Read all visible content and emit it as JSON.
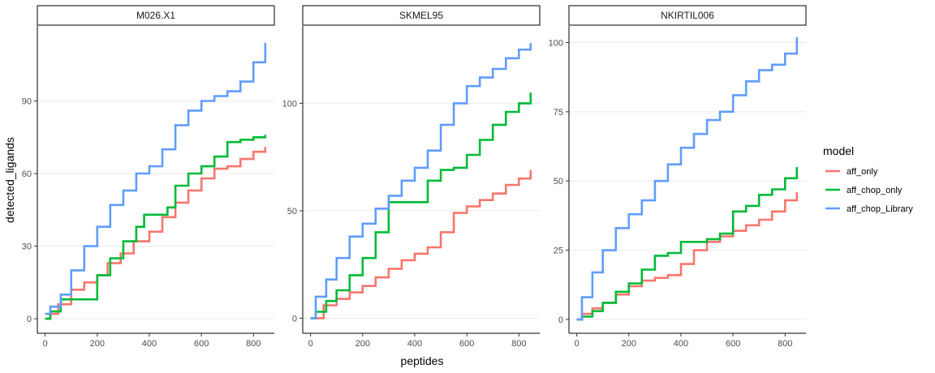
{
  "chart_data": {
    "type": "line",
    "xlabel": "peptides",
    "ylabel": "detected_ligands",
    "legend": {
      "title": "model",
      "position": "right",
      "entries": [
        "aff_only",
        "aff_chop_only",
        "aff_chop_Library"
      ]
    },
    "colors": {
      "aff_only": "#F8766D",
      "aff_chop_only": "#00BA38",
      "aff_chop_Library": "#619CFF"
    },
    "grid": "horizontal-major",
    "panels": [
      {
        "title": "M026.X1",
        "xlim": [
          -30,
          880
        ],
        "ylim": [
          -6,
          121
        ],
        "xticks": [
          0,
          200,
          400,
          600,
          800
        ],
        "yticks": [
          0,
          30,
          60,
          90
        ],
        "series": [
          {
            "name": "aff_only",
            "x": [
              0,
              20,
              50,
              100,
              150,
              200,
              240,
              290,
              340,
              400,
              450,
              500,
              550,
              600,
              650,
              700,
              750,
              800,
              845
            ],
            "y": [
              0,
              2,
              6,
              12,
              15,
              18,
              23,
              27,
              32,
              36,
              42,
              48,
              53,
              58,
              62,
              63,
              66,
              69,
              71
            ]
          },
          {
            "name": "aff_chop_only",
            "x": [
              0,
              20,
              60,
              150,
              200,
              250,
              300,
              350,
              380,
              430,
              470,
              500,
              550,
              600,
              650,
              700,
              750,
              800,
              845
            ],
            "y": [
              0,
              3,
              8,
              8,
              18,
              25,
              32,
              38,
              43,
              43,
              46,
              55,
              60,
              63,
              67,
              73,
              74,
              75,
              76
            ]
          },
          {
            "name": "aff_chop_Library",
            "x": [
              0,
              20,
              60,
              100,
              150,
              200,
              250,
              300,
              350,
              400,
              450,
              500,
              550,
              600,
              650,
              700,
              750,
              800,
              845
            ],
            "y": [
              2,
              5,
              10,
              20,
              30,
              38,
              47,
              53,
              60,
              63,
              70,
              80,
              86,
              90,
              92,
              94,
              98,
              106,
              114
            ]
          }
        ]
      },
      {
        "title": "SKMEL95",
        "xlim": [
          -30,
          880
        ],
        "ylim": [
          -7,
          136
        ],
        "xticks": [
          0,
          200,
          400,
          600,
          800
        ],
        "yticks": [
          0,
          50,
          100
        ],
        "series": [
          {
            "name": "aff_only",
            "x": [
              0,
              50,
              100,
              150,
              200,
              250,
              300,
              350,
              400,
              450,
              500,
              550,
              600,
              650,
              700,
              750,
              800,
              845
            ],
            "y": [
              0,
              6,
              9,
              12,
              15,
              19,
              23,
              27,
              30,
              33,
              40,
              49,
              52,
              55,
              58,
              62,
              65,
              69
            ]
          },
          {
            "name": "aff_chop_only",
            "x": [
              0,
              20,
              60,
              100,
              150,
              200,
              250,
              300,
              400,
              450,
              500,
              550,
              600,
              650,
              700,
              750,
              800,
              845
            ],
            "y": [
              0,
              3,
              8,
              13,
              20,
              28,
              40,
              54,
              54,
              64,
              69,
              70,
              76,
              83,
              90,
              96,
              100,
              105
            ]
          },
          {
            "name": "aff_chop_Library",
            "x": [
              0,
              20,
              60,
              100,
              150,
              200,
              250,
              300,
              350,
              400,
              450,
              500,
              550,
              600,
              650,
              700,
              750,
              800,
              845
            ],
            "y": [
              0,
              10,
              18,
              28,
              38,
              44,
              51,
              57,
              64,
              70,
              78,
              90,
              100,
              108,
              112,
              116,
              121,
              125,
              128
            ]
          }
        ]
      },
      {
        "title": "NKIRTIL006",
        "xlim": [
          -30,
          880
        ],
        "ylim": [
          -5,
          106
        ],
        "xticks": [
          0,
          200,
          400,
          600,
          800
        ],
        "yticks": [
          0,
          25,
          50,
          75,
          100
        ],
        "series": [
          {
            "name": "aff_only",
            "x": [
              0,
              20,
              60,
              100,
              150,
              200,
              250,
              300,
              350,
              400,
              450,
              500,
              550,
              600,
              650,
              700,
              750,
              800,
              845
            ],
            "y": [
              0,
              2,
              4,
              6,
              9,
              12,
              14,
              15,
              16,
              20,
              25,
              28,
              30,
              32,
              34,
              36,
              39,
              43,
              46
            ]
          },
          {
            "name": "aff_chop_only",
            "x": [
              0,
              20,
              60,
              100,
              150,
              200,
              250,
              300,
              350,
              400,
              450,
              500,
              550,
              600,
              650,
              700,
              750,
              800,
              845
            ],
            "y": [
              0,
              1,
              3,
              6,
              10,
              13,
              18,
              23,
              24,
              28,
              28,
              29,
              31,
              39,
              41,
              45,
              47,
              51,
              55
            ]
          },
          {
            "name": "aff_chop_Library",
            "x": [
              0,
              20,
              60,
              100,
              150,
              200,
              250,
              300,
              350,
              400,
              450,
              500,
              550,
              600,
              650,
              700,
              750,
              800,
              845
            ],
            "y": [
              0,
              8,
              17,
              25,
              33,
              38,
              43,
              50,
              56,
              62,
              67,
              72,
              75,
              81,
              86,
              90,
              92,
              96,
              102
            ]
          }
        ]
      }
    ]
  }
}
